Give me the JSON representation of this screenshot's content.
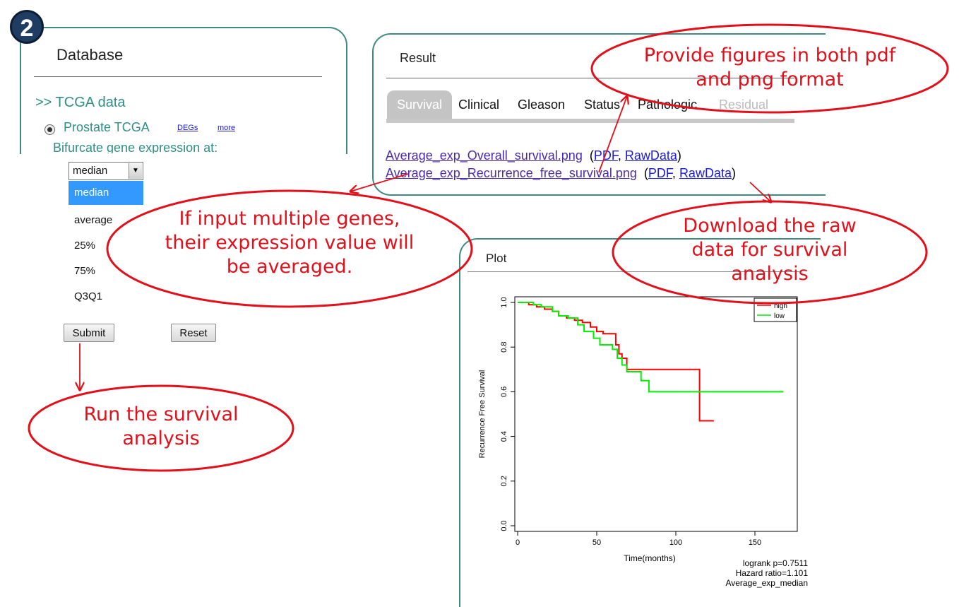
{
  "step_badge": "2",
  "database": {
    "title": "Database",
    "section_link": ">> TCGA data",
    "dataset_label": "Prostate TCGA",
    "degs_link": "DEGs",
    "more_link": "more",
    "bifurcate_label": "Bifurcate gene expression at:",
    "dropdown": {
      "selected": "median",
      "options": [
        "median",
        "average",
        "25%",
        "75%",
        "Q3Q1"
      ]
    },
    "submit_label": "Submit",
    "reset_label": "Reset"
  },
  "result": {
    "title": "Result",
    "tabs": [
      "Survival",
      "Clinical",
      "Gleason",
      "Status",
      "Pathologic",
      "Residual"
    ],
    "active_tab": "Survival",
    "files": [
      {
        "name": "Average_exp_Overall_survival.png",
        "pdf": "PDF",
        "raw": "RawData"
      },
      {
        "name": "Average_exp_Recurrence_free_survival.png",
        "pdf": "PDF",
        "raw": "RawData"
      }
    ]
  },
  "plot": {
    "title": "Plot",
    "annotation_lines": [
      "logrank p=0.7511",
      "Hazard ratio=1.101",
      "Average_exp_median"
    ]
  },
  "callouts": {
    "formats": "Provide figures in both pdf and png format",
    "multi_gene": "If input multiple genes, their expression value will be averaged.",
    "raw_data": "Download the raw data for survival analysis",
    "run": "Run the survival analysis"
  },
  "colors": {
    "panel_border": "#3f8a82",
    "teal_text": "#2f8f86",
    "callout_red": "#e1101a",
    "high_line": "#ff0000",
    "low_line": "#00ee00",
    "dropdown_highlight": "#3399ff"
  },
  "chart_data": {
    "type": "line",
    "title": "",
    "xlabel": "Time(months)",
    "ylabel": "Recurrence Free Survival",
    "xlim": [
      0,
      175
    ],
    "ylim": [
      0,
      1.0
    ],
    "xticks": [
      0,
      50,
      100,
      150
    ],
    "yticks": [
      0.0,
      0.2,
      0.4,
      0.6,
      0.8,
      1.0
    ],
    "legend_position": "top-right",
    "series": [
      {
        "name": "high",
        "color": "#ff0000",
        "points": [
          [
            0,
            1.0
          ],
          [
            7,
            1.0
          ],
          [
            7,
            0.99
          ],
          [
            12,
            0.99
          ],
          [
            12,
            0.98
          ],
          [
            17,
            0.98
          ],
          [
            17,
            0.97
          ],
          [
            22,
            0.97
          ],
          [
            22,
            0.96
          ],
          [
            26,
            0.96
          ],
          [
            26,
            0.94
          ],
          [
            31,
            0.94
          ],
          [
            31,
            0.93
          ],
          [
            36,
            0.93
          ],
          [
            36,
            0.92
          ],
          [
            41,
            0.92
          ],
          [
            41,
            0.91
          ],
          [
            46,
            0.91
          ],
          [
            46,
            0.89
          ],
          [
            50,
            0.89
          ],
          [
            50,
            0.87
          ],
          [
            54,
            0.87
          ],
          [
            54,
            0.86
          ],
          [
            62,
            0.86
          ],
          [
            62,
            0.81
          ],
          [
            64,
            0.81
          ],
          [
            64,
            0.77
          ],
          [
            66,
            0.77
          ],
          [
            66,
            0.75
          ],
          [
            69,
            0.75
          ],
          [
            69,
            0.7
          ],
          [
            115,
            0.7
          ],
          [
            115,
            0.47
          ],
          [
            124,
            0.47
          ]
        ]
      },
      {
        "name": "low",
        "color": "#00ee00",
        "points": [
          [
            0,
            1.0
          ],
          [
            10,
            1.0
          ],
          [
            10,
            0.99
          ],
          [
            15,
            0.99
          ],
          [
            15,
            0.98
          ],
          [
            22,
            0.98
          ],
          [
            22,
            0.96
          ],
          [
            26,
            0.96
          ],
          [
            26,
            0.94
          ],
          [
            32,
            0.94
          ],
          [
            32,
            0.93
          ],
          [
            38,
            0.93
          ],
          [
            38,
            0.9
          ],
          [
            42,
            0.9
          ],
          [
            42,
            0.87
          ],
          [
            48,
            0.87
          ],
          [
            48,
            0.84
          ],
          [
            52,
            0.84
          ],
          [
            52,
            0.81
          ],
          [
            60,
            0.81
          ],
          [
            60,
            0.79
          ],
          [
            63,
            0.79
          ],
          [
            63,
            0.75
          ],
          [
            66,
            0.75
          ],
          [
            66,
            0.72
          ],
          [
            69,
            0.72
          ],
          [
            69,
            0.69
          ],
          [
            78,
            0.69
          ],
          [
            78,
            0.65
          ],
          [
            83,
            0.65
          ],
          [
            83,
            0.6
          ],
          [
            168,
            0.6
          ]
        ]
      }
    ]
  }
}
